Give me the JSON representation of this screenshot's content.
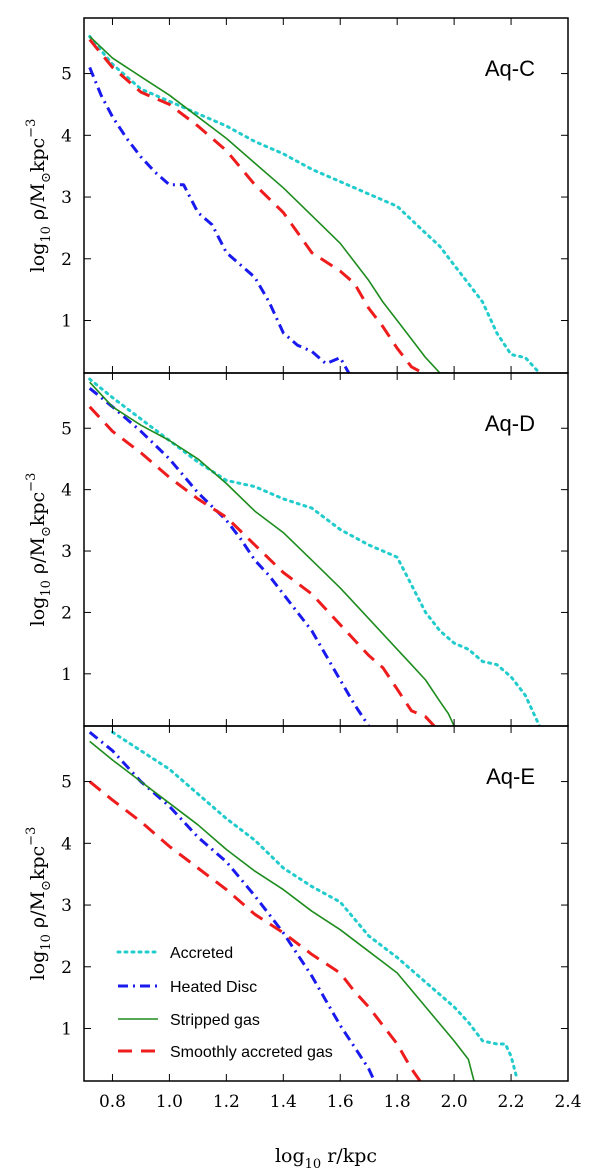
{
  "figure": {
    "xlabel_parts": [
      "log",
      "10",
      " r/kpc"
    ],
    "ylabel_parts": [
      "log",
      "10",
      " ρ/M",
      "⊙",
      "kpc",
      "−3"
    ]
  },
  "legend": {
    "items": [
      {
        "label": "Accreted",
        "color": "#22cccc",
        "style": "dotted"
      },
      {
        "label": "Heated Disc",
        "color": "#1a1aee",
        "style": "dashdot"
      },
      {
        "label": "Stripped gas",
        "color": "#1e8c1e",
        "style": "solid"
      },
      {
        "label": "Smoothly accreted gas",
        "color": "#ee1c1c",
        "style": "dashed"
      }
    ]
  },
  "chart_data": [
    {
      "type": "line",
      "title": "Aq-C",
      "xlim": [
        0.7,
        2.4
      ],
      "ylim": [
        0.15,
        5.9
      ],
      "xticks": [
        0.8,
        1.0,
        1.2,
        1.4,
        1.6,
        1.8,
        2.0,
        2.2,
        2.4
      ],
      "yticks": [
        1,
        2,
        3,
        4,
        5
      ],
      "series": [
        {
          "name": "Accreted",
          "x": [
            0.72,
            0.8,
            0.9,
            1.0,
            1.1,
            1.2,
            1.3,
            1.4,
            1.5,
            1.6,
            1.7,
            1.8,
            1.88,
            1.95,
            2.0,
            2.05,
            2.1,
            2.15,
            2.2,
            2.25,
            2.3
          ],
          "y": [
            5.6,
            5.15,
            4.75,
            4.55,
            4.35,
            4.15,
            3.9,
            3.7,
            3.45,
            3.25,
            3.05,
            2.85,
            2.5,
            2.2,
            1.9,
            1.6,
            1.3,
            0.8,
            0.45,
            0.4,
            0.15
          ]
        },
        {
          "name": "Heated Disc",
          "x": [
            0.72,
            0.76,
            0.8,
            0.85,
            0.9,
            0.95,
            1.0,
            1.05,
            1.1,
            1.15,
            1.2,
            1.25,
            1.3,
            1.35,
            1.4,
            1.45,
            1.5,
            1.55,
            1.6,
            1.63
          ],
          "y": [
            5.1,
            4.65,
            4.3,
            3.95,
            3.65,
            3.4,
            3.2,
            3.2,
            2.75,
            2.55,
            2.1,
            1.9,
            1.7,
            1.3,
            0.8,
            0.6,
            0.5,
            0.3,
            0.4,
            0.15
          ]
        },
        {
          "name": "Stripped gas",
          "x": [
            0.72,
            0.8,
            0.9,
            1.0,
            1.1,
            1.2,
            1.3,
            1.4,
            1.5,
            1.6,
            1.7,
            1.75,
            1.8,
            1.85,
            1.9,
            1.95,
            1.98
          ],
          "y": [
            5.6,
            5.25,
            4.95,
            4.65,
            4.3,
            3.95,
            3.55,
            3.15,
            2.7,
            2.25,
            1.65,
            1.3,
            1.0,
            0.7,
            0.4,
            0.15,
            0.15
          ]
        },
        {
          "name": "Smoothly accreted gas",
          "x": [
            0.72,
            0.8,
            0.9,
            1.0,
            1.1,
            1.2,
            1.3,
            1.4,
            1.5,
            1.6,
            1.65,
            1.7,
            1.75,
            1.8,
            1.85,
            1.89
          ],
          "y": [
            5.55,
            5.1,
            4.7,
            4.5,
            4.15,
            3.75,
            3.2,
            2.75,
            2.1,
            1.8,
            1.6,
            1.2,
            0.9,
            0.55,
            0.25,
            0.15
          ]
        }
      ]
    },
    {
      "type": "line",
      "title": "Aq-D",
      "xlim": [
        0.7,
        2.4
      ],
      "ylim": [
        0.15,
        5.9
      ],
      "xticks": [
        0.8,
        1.0,
        1.2,
        1.4,
        1.6,
        1.8,
        2.0,
        2.2,
        2.4
      ],
      "yticks": [
        1,
        2,
        3,
        4,
        5
      ],
      "series": [
        {
          "name": "Accreted",
          "x": [
            0.72,
            0.8,
            0.9,
            1.0,
            1.1,
            1.2,
            1.3,
            1.4,
            1.5,
            1.6,
            1.7,
            1.8,
            1.85,
            1.9,
            1.95,
            2.0,
            2.05,
            2.1,
            2.15,
            2.2,
            2.25,
            2.3
          ],
          "y": [
            5.8,
            5.5,
            5.15,
            4.8,
            4.45,
            4.15,
            4.05,
            3.85,
            3.7,
            3.35,
            3.1,
            2.9,
            2.45,
            2.0,
            1.7,
            1.5,
            1.4,
            1.2,
            1.15,
            0.95,
            0.65,
            0.15
          ]
        },
        {
          "name": "Heated Disc",
          "x": [
            0.72,
            0.8,
            0.9,
            1.0,
            1.1,
            1.2,
            1.25,
            1.3,
            1.35,
            1.4,
            1.45,
            1.5,
            1.55,
            1.6,
            1.65,
            1.7
          ],
          "y": [
            5.65,
            5.35,
            4.95,
            4.5,
            3.95,
            3.5,
            3.2,
            2.85,
            2.6,
            2.3,
            2.0,
            1.7,
            1.3,
            0.9,
            0.5,
            0.15
          ]
        },
        {
          "name": "Stripped gas",
          "x": [
            0.72,
            0.8,
            0.9,
            1.0,
            1.1,
            1.2,
            1.3,
            1.4,
            1.5,
            1.6,
            1.7,
            1.8,
            1.85,
            1.9,
            1.95,
            1.98,
            2.0
          ],
          "y": [
            5.75,
            5.35,
            5.05,
            4.8,
            4.5,
            4.1,
            3.65,
            3.3,
            2.85,
            2.4,
            1.9,
            1.4,
            1.15,
            0.9,
            0.55,
            0.35,
            0.15
          ]
        },
        {
          "name": "Smoothly accreted gas",
          "x": [
            0.72,
            0.8,
            0.9,
            1.0,
            1.1,
            1.2,
            1.3,
            1.4,
            1.5,
            1.6,
            1.7,
            1.75,
            1.8,
            1.85,
            1.9,
            1.93
          ],
          "y": [
            5.35,
            4.95,
            4.6,
            4.2,
            3.85,
            3.55,
            3.1,
            2.65,
            2.3,
            1.8,
            1.3,
            1.1,
            0.75,
            0.4,
            0.3,
            0.15
          ]
        }
      ]
    },
    {
      "type": "line",
      "title": "Aq-E",
      "xlim": [
        0.7,
        2.4
      ],
      "ylim": [
        0.15,
        5.9
      ],
      "xticks": [
        0.8,
        1.0,
        1.2,
        1.4,
        1.6,
        1.8,
        2.0,
        2.2,
        2.4
      ],
      "yticks": [
        1,
        2,
        3,
        4,
        5
      ],
      "series": [
        {
          "name": "Accreted",
          "x": [
            0.8,
            0.9,
            1.0,
            1.1,
            1.2,
            1.3,
            1.4,
            1.5,
            1.6,
            1.7,
            1.8,
            1.9,
            2.0,
            2.05,
            2.1,
            2.15,
            2.18,
            2.2,
            2.22
          ],
          "y": [
            5.8,
            5.5,
            5.2,
            4.8,
            4.4,
            4.05,
            3.6,
            3.3,
            3.05,
            2.5,
            2.15,
            1.75,
            1.35,
            1.1,
            0.8,
            0.75,
            0.75,
            0.55,
            0.2
          ]
        },
        {
          "name": "Heated Disc",
          "x": [
            0.72,
            0.8,
            0.9,
            1.0,
            1.1,
            1.2,
            1.3,
            1.35,
            1.4,
            1.45,
            1.5,
            1.55,
            1.6,
            1.65,
            1.7,
            1.72
          ],
          "y": [
            5.8,
            5.5,
            5.0,
            4.6,
            4.1,
            3.7,
            3.15,
            2.85,
            2.55,
            2.2,
            1.85,
            1.45,
            1.05,
            0.7,
            0.35,
            0.15
          ]
        },
        {
          "name": "Stripped gas",
          "x": [
            0.72,
            0.8,
            0.9,
            1.0,
            1.1,
            1.2,
            1.3,
            1.4,
            1.5,
            1.6,
            1.7,
            1.8,
            1.9,
            2.0,
            2.05,
            2.07
          ],
          "y": [
            5.65,
            5.35,
            5.0,
            4.65,
            4.3,
            3.9,
            3.55,
            3.25,
            2.9,
            2.6,
            2.25,
            1.9,
            1.35,
            0.8,
            0.5,
            0.15
          ]
        },
        {
          "name": "Smoothly accreted gas",
          "x": [
            0.72,
            0.8,
            0.9,
            1.0,
            1.1,
            1.2,
            1.3,
            1.4,
            1.5,
            1.6,
            1.65,
            1.7,
            1.75,
            1.8,
            1.85,
            1.88
          ],
          "y": [
            5.0,
            4.7,
            4.35,
            3.95,
            3.6,
            3.25,
            2.85,
            2.55,
            2.2,
            1.9,
            1.6,
            1.35,
            1.05,
            0.75,
            0.35,
            0.15
          ]
        }
      ]
    }
  ]
}
